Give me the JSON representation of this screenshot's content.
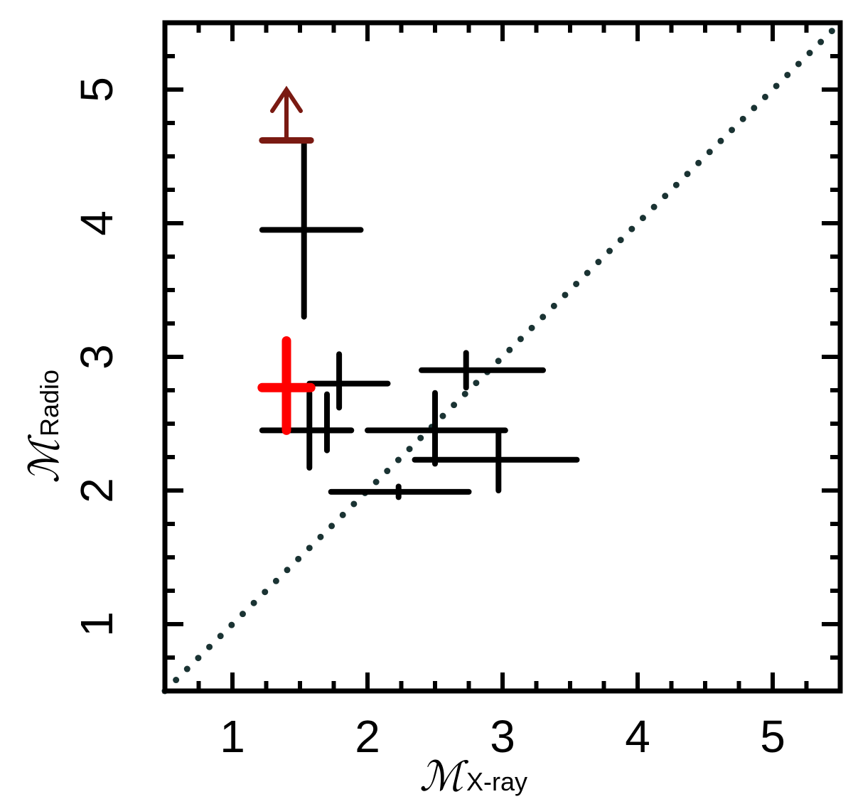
{
  "chart_data": {
    "type": "scatter",
    "xlabel": {
      "symbol": "ℳ",
      "subscript": "X-ray"
    },
    "ylabel": {
      "symbol": "ℳ",
      "subscript": "Radio"
    },
    "xlim": [
      0.5,
      5.5
    ],
    "ylim": [
      0.5,
      5.5
    ],
    "xticks": [
      "1",
      "2",
      "3",
      "4",
      "5"
    ],
    "yticks": [
      "1",
      "2",
      "3",
      "4",
      "5"
    ],
    "grid": false,
    "reference_line": {
      "style": "dotted",
      "from": [
        0.5,
        0.5
      ],
      "to": [
        5.5,
        5.5
      ],
      "color": "#1a3333"
    },
    "points": [
      {
        "x": 1.53,
        "y": 3.95,
        "x_lo": 1.22,
        "x_hi": 1.95,
        "y_lo": 3.3,
        "y_hi": 4.6,
        "color": "#000000"
      },
      {
        "x": 1.79,
        "y": 2.8,
        "x_lo": 1.57,
        "x_hi": 2.15,
        "y_lo": 2.62,
        "y_hi": 3.02,
        "color": "#000000"
      },
      {
        "x": 1.57,
        "y": 2.45,
        "x_lo": 1.22,
        "x_hi": 1.88,
        "y_lo": 2.17,
        "y_hi": 2.73,
        "color": "#000000"
      },
      {
        "x": 1.7,
        "y": 2.45,
        "x_lo": 1.57,
        "x_hi": 1.88,
        "y_lo": 2.3,
        "y_hi": 2.72,
        "color": "#000000"
      },
      {
        "x": 2.73,
        "y": 2.9,
        "x_lo": 2.4,
        "x_hi": 3.3,
        "y_lo": 2.77,
        "y_hi": 3.03,
        "color": "#000000"
      },
      {
        "x": 2.5,
        "y": 2.45,
        "x_lo": 2.0,
        "x_hi": 3.02,
        "y_lo": 2.2,
        "y_hi": 2.73,
        "color": "#000000"
      },
      {
        "x": 2.97,
        "y": 2.23,
        "x_lo": 2.35,
        "x_hi": 3.55,
        "y_lo": 2.0,
        "y_hi": 2.43,
        "color": "#000000"
      },
      {
        "x": 2.23,
        "y": 1.99,
        "x_lo": 1.73,
        "x_hi": 2.75,
        "y_lo": 1.95,
        "y_hi": 2.03,
        "color": "#000000"
      },
      {
        "x": 1.4,
        "y": 2.77,
        "x_lo": 1.22,
        "x_hi": 1.58,
        "y_lo": 2.45,
        "y_hi": 3.12,
        "color": "#ff0000"
      }
    ],
    "lower_limit": {
      "x": 1.4,
      "y": 4.62,
      "x_lo": 1.22,
      "x_hi": 1.58,
      "arrow_to": 5.0,
      "color": "#7a1a12"
    }
  }
}
